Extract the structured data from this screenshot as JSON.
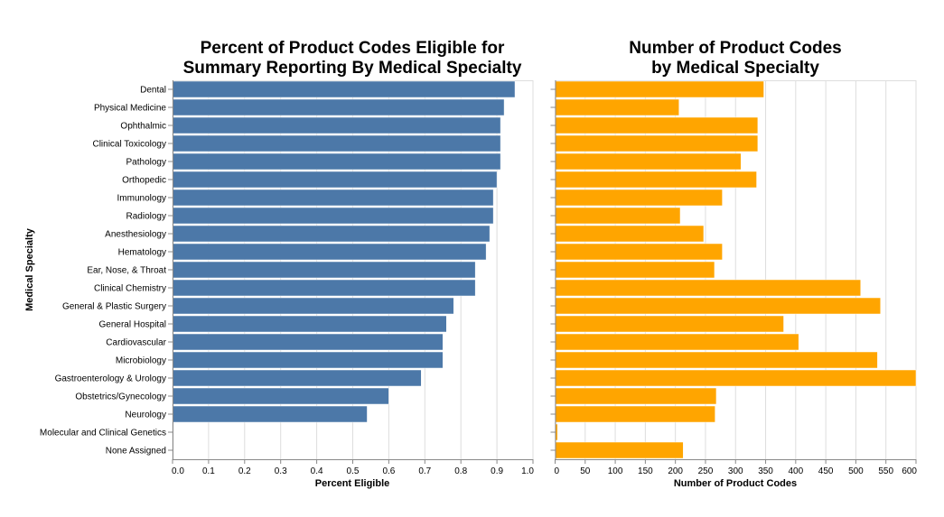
{
  "chart_data": [
    {
      "type": "bar",
      "orientation": "horizontal",
      "title": [
        "Percent of Product Codes Eligible for",
        "Summary Reporting By Medical Specialty"
      ],
      "xlabel": "Percent Eligible",
      "ylabel": "Medical Specialty",
      "xlim": [
        0,
        1.0
      ],
      "xticks": [
        "0.0",
        "0.1",
        "0.2",
        "0.3",
        "0.4",
        "0.5",
        "0.6",
        "0.7",
        "0.8",
        "0.9",
        "1.0"
      ],
      "xtick_values": [
        0,
        0.1,
        0.2,
        0.3,
        0.4,
        0.5,
        0.6,
        0.7,
        0.8,
        0.9,
        1.0
      ],
      "grid": true,
      "color": "#4c78a8",
      "categories": [
        "Dental",
        "Physical Medicine",
        "Ophthalmic",
        "Clinical Toxicology",
        "Pathology",
        "Orthopedic",
        "Immunology",
        "Radiology",
        "Anesthesiology",
        "Hematology",
        "Ear, Nose, & Throat",
        "Clinical Chemistry",
        "General & Plastic Surgery",
        "General Hospital",
        "Cardiovascular",
        "Microbiology",
        "Gastroenterology & Urology",
        "Obstetrics/Gynecology",
        "Neurology",
        "Molecular and Clinical  Genetics",
        "None Assigned"
      ],
      "values": [
        0.95,
        0.92,
        0.91,
        0.91,
        0.91,
        0.9,
        0.89,
        0.89,
        0.88,
        0.87,
        0.84,
        0.84,
        0.78,
        0.76,
        0.75,
        0.75,
        0.69,
        0.6,
        0.54,
        null,
        null
      ]
    },
    {
      "type": "bar",
      "orientation": "horizontal",
      "title": [
        "Number of Product Codes",
        "by Medical Specialty"
      ],
      "xlabel": "Number of Product Codes",
      "ylabel": "",
      "xlim": [
        0,
        600
      ],
      "xticks": [
        "0",
        "50",
        "100",
        "150",
        "200",
        "250",
        "300",
        "350",
        "400",
        "450",
        "500",
        "550",
        "600"
      ],
      "xtick_values": [
        0,
        50,
        100,
        150,
        200,
        250,
        300,
        350,
        400,
        450,
        500,
        550,
        600
      ],
      "grid": true,
      "color": "#ffa500",
      "categories": [
        "Dental",
        "Physical Medicine",
        "Ophthalmic",
        "Clinical Toxicology",
        "Pathology",
        "Orthopedic",
        "Immunology",
        "Radiology",
        "Anesthesiology",
        "Hematology",
        "Ear, Nose, & Throat",
        "Clinical Chemistry",
        "General & Plastic Surgery",
        "General Hospital",
        "Cardiovascular",
        "Microbiology",
        "Gastroenterology & Urology",
        "Obstetrics/Gynecology",
        "Neurology",
        "Molecular and Clinical  Genetics",
        "None Assigned"
      ],
      "values": [
        347,
        206,
        337,
        337,
        309,
        335,
        278,
        208,
        247,
        278,
        265,
        508,
        541,
        380,
        405,
        536,
        600,
        268,
        266,
        4,
        213
      ]
    }
  ]
}
